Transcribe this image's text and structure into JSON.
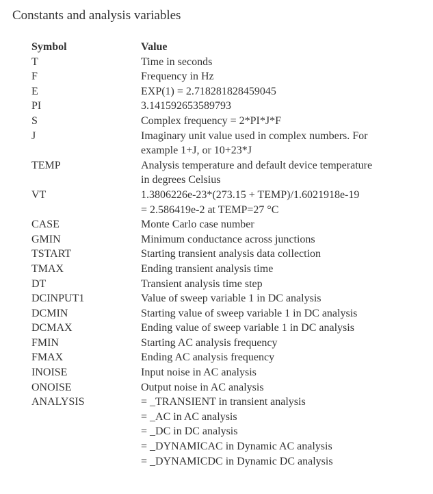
{
  "title": "Constants and analysis variables",
  "header": {
    "symbol": "Symbol",
    "value": "Value"
  },
  "rows": [
    {
      "symbol": "T",
      "lines": [
        "Time in seconds"
      ]
    },
    {
      "symbol": "F",
      "lines": [
        "Frequency in Hz"
      ]
    },
    {
      "symbol": "E",
      "lines": [
        "EXP(1) = 2.718281828459045"
      ]
    },
    {
      "symbol": "PI",
      "lines": [
        "3.141592653589793"
      ]
    },
    {
      "symbol": "S",
      "lines": [
        "Complex frequency = 2*PI*J*F"
      ]
    },
    {
      "symbol": "J",
      "lines": [
        "Imaginary unit value used in complex numbers. For",
        "example 1+J, or 10+23*J"
      ]
    },
    {
      "symbol": "TEMP",
      "lines": [
        "Analysis temperature and default device temperature",
        "in degrees Celsius"
      ]
    },
    {
      "symbol": "VT",
      "lines": [
        "1.3806226e-23*(273.15 + TEMP)/1.6021918e-19",
        " = 2.586419e-2 at TEMP=27 °C"
      ]
    },
    {
      "symbol": "CASE",
      "lines": [
        "Monte Carlo case number"
      ]
    },
    {
      "symbol": "GMIN",
      "lines": [
        "Minimum conductance across junctions"
      ]
    },
    {
      "symbol": "TSTART",
      "lines": [
        "Starting transient analysis data collection"
      ]
    },
    {
      "symbol": "TMAX",
      "lines": [
        "Ending transient analysis time"
      ]
    },
    {
      "symbol": "DT",
      "lines": [
        "Transient analysis time step"
      ]
    },
    {
      "symbol": "DCINPUT1",
      "lines": [
        "Value of sweep variable 1 in DC analysis"
      ]
    },
    {
      "symbol": "DCMIN",
      "lines": [
        "Starting value of sweep variable 1 in DC analysis"
      ]
    },
    {
      "symbol": "DCMAX",
      "lines": [
        "Ending value of sweep variable 1 in DC analysis"
      ]
    },
    {
      "symbol": "FMIN",
      "lines": [
        "Starting AC analysis frequency"
      ]
    },
    {
      "symbol": "FMAX",
      "lines": [
        "Ending AC analysis frequency"
      ]
    },
    {
      "symbol": "INOISE",
      "lines": [
        "Input noise in AC analysis"
      ]
    },
    {
      "symbol": "ONOISE",
      "lines": [
        "Output noise in AC analysis"
      ]
    },
    {
      "symbol": "ANALYSIS",
      "lines": [
        "=  _TRANSIENT in transient analysis",
        "=  _AC in AC analysis",
        "=  _DC in DC analysis",
        "=  _DYNAMICAC in Dynamic AC analysis",
        "=  _DYNAMICDC in Dynamic DC analysis"
      ]
    }
  ]
}
